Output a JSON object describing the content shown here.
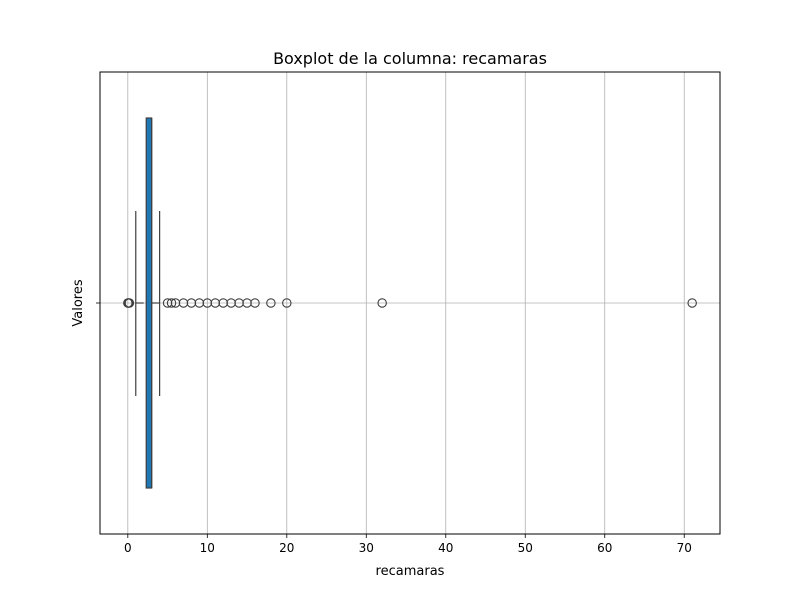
{
  "chart_data": {
    "type": "boxplot",
    "title": "Boxplot de la columna: recamaras",
    "xlabel": "recamaras",
    "ylabel": "Valores",
    "orientation": "horizontal",
    "xlim": [
      -3.5,
      74.5
    ],
    "x_ticks": [
      0,
      10,
      20,
      30,
      40,
      50,
      60,
      70
    ],
    "grid": true,
    "box": {
      "whisker_low": 1,
      "q1": 2,
      "median": 3,
      "q3": 3,
      "whisker_high": 4,
      "color": "#1f77b4"
    },
    "outliers": [
      0,
      0.1,
      0.2,
      5,
      5.5,
      6,
      7,
      8,
      9,
      10,
      11,
      12,
      13,
      14,
      15,
      16,
      18,
      20,
      32,
      71
    ]
  }
}
